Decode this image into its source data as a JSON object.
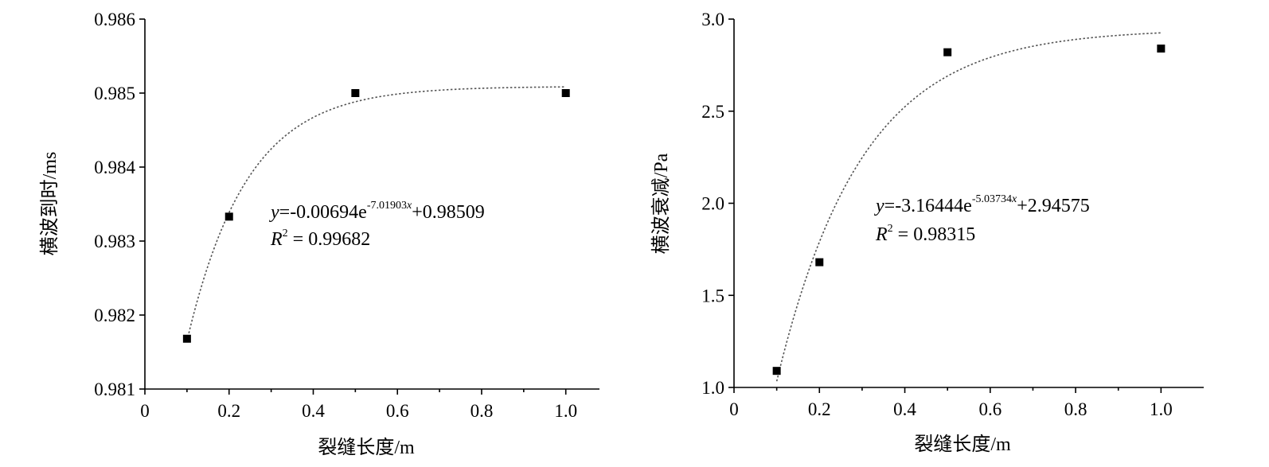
{
  "chart_data": [
    {
      "type": "scatter",
      "x": [
        0.1,
        0.2,
        0.5,
        1.0
      ],
      "y": [
        0.98168,
        0.98333,
        0.985,
        0.985
      ],
      "xlim": [
        0,
        1.08
      ],
      "ylim": [
        0.981,
        0.986
      ],
      "xticks": [
        0,
        0.2,
        0.4,
        0.6,
        0.8,
        1.0
      ],
      "xtick_labels": [
        "0",
        "0.2",
        "0.4",
        "0.6",
        "0.8",
        "1.0"
      ],
      "yticks": [
        0.981,
        0.982,
        0.983,
        0.984,
        0.985,
        0.986
      ],
      "ytick_labels": [
        "0.981",
        "0.982",
        "0.983",
        "0.984",
        "0.985",
        "0.986"
      ],
      "xlabel": "裂缝长度/m",
      "ylabel": "横波到时/ms",
      "grid": false,
      "fit": {
        "a": -0.00694,
        "b": -7.01903,
        "c": 0.98509,
        "x_range": [
          0.1,
          1.0
        ],
        "eq_var": "y",
        "eq_lhs": "=-0.00694e",
        "eq_exp": "-7.01903",
        "eq_exp_var": "x",
        "eq_rhs": "+0.98509",
        "r2_var": "R",
        "r2_sup": "2",
        "r2_val": " = 0.99682"
      }
    },
    {
      "type": "scatter",
      "x": [
        0.1,
        0.2,
        0.5,
        1.0
      ],
      "y": [
        1.09,
        1.68,
        2.82,
        2.84
      ],
      "xlim": [
        0,
        1.1
      ],
      "ylim": [
        1.0,
        3.0
      ],
      "xticks": [
        0,
        0.2,
        0.4,
        0.6,
        0.8,
        1.0
      ],
      "xtick_labels": [
        "0",
        "0.2",
        "0.4",
        "0.6",
        "0.8",
        "1.0"
      ],
      "yticks": [
        1.0,
        1.5,
        2.0,
        2.5,
        3.0
      ],
      "ytick_labels": [
        "1.0",
        "1.5",
        "2.0",
        "2.5",
        "3.0"
      ],
      "xlabel": "裂缝长度/m",
      "ylabel": "横波衰减/Pa",
      "grid": false,
      "fit": {
        "a": -3.16444,
        "b": -5.03734,
        "c": 2.94575,
        "x_range": [
          0.1,
          1.0
        ],
        "eq_var": "y",
        "eq_lhs": "=-3.16444e",
        "eq_exp": "-5.03734",
        "eq_exp_var": "x",
        "eq_rhs": "+2.94575",
        "r2_var": "R",
        "r2_sup": "2",
        "r2_val": " = 0.98315"
      }
    }
  ]
}
